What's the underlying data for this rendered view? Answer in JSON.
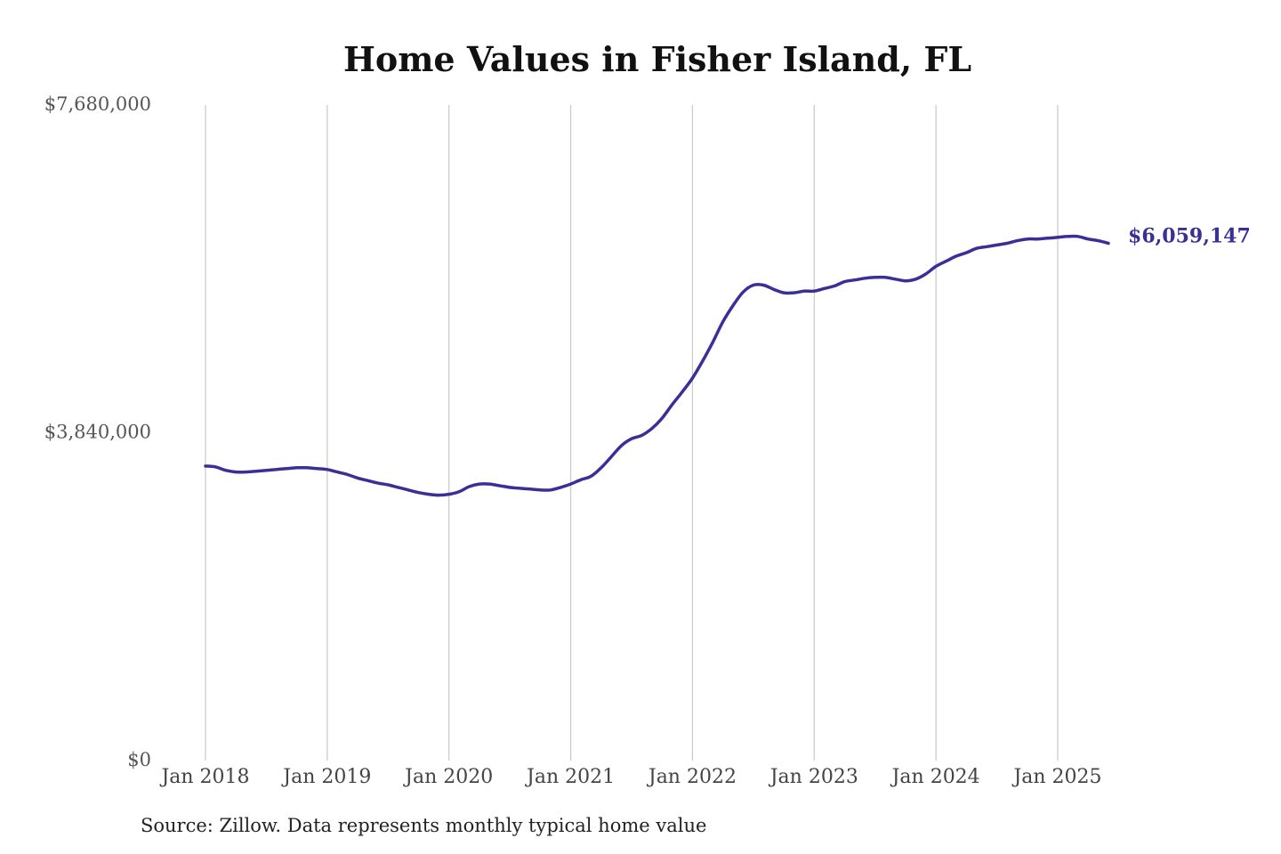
{
  "chart_data": {
    "type": "line",
    "title": "Home Values in Fisher Island, FL",
    "source": "Source: Zillow. Data represents monthly typical home value",
    "xlabel": "",
    "ylabel": "",
    "ylim": [
      0,
      7680000
    ],
    "xlim": [
      "2018-01",
      "2025-06"
    ],
    "y_ticks": [
      "$7,680,000",
      "$3,840,000",
      "$0"
    ],
    "y_tick_values": [
      7680000,
      3840000,
      0
    ],
    "x_ticks": [
      "Jan 2018",
      "Jan 2019",
      "Jan 2020",
      "Jan 2021",
      "Jan 2022",
      "Jan 2023",
      "Jan 2024",
      "Jan 2025"
    ],
    "x_tick_dates": [
      "2018-01",
      "2019-01",
      "2020-01",
      "2021-01",
      "2022-01",
      "2023-01",
      "2024-01",
      "2025-01"
    ],
    "grid": "vertical",
    "line_color": "#3a2f96",
    "end_label": "$6,059,147",
    "series": [
      {
        "points": [
          [
            "2018-01",
            3450000
          ],
          [
            "2018-02",
            3440000
          ],
          [
            "2018-03",
            3400000
          ],
          [
            "2018-04",
            3380000
          ],
          [
            "2018-05",
            3380000
          ],
          [
            "2018-06",
            3390000
          ],
          [
            "2018-07",
            3400000
          ],
          [
            "2018-08",
            3410000
          ],
          [
            "2018-09",
            3420000
          ],
          [
            "2018-10",
            3430000
          ],
          [
            "2018-11",
            3430000
          ],
          [
            "2018-12",
            3420000
          ],
          [
            "2019-01",
            3410000
          ],
          [
            "2019-02",
            3380000
          ],
          [
            "2019-03",
            3350000
          ],
          [
            "2019-04",
            3310000
          ],
          [
            "2019-05",
            3280000
          ],
          [
            "2019-06",
            3250000
          ],
          [
            "2019-07",
            3230000
          ],
          [
            "2019-08",
            3200000
          ],
          [
            "2019-09",
            3170000
          ],
          [
            "2019-10",
            3140000
          ],
          [
            "2019-11",
            3120000
          ],
          [
            "2019-12",
            3110000
          ],
          [
            "2020-01",
            3120000
          ],
          [
            "2020-02",
            3150000
          ],
          [
            "2020-03",
            3210000
          ],
          [
            "2020-04",
            3240000
          ],
          [
            "2020-05",
            3240000
          ],
          [
            "2020-06",
            3220000
          ],
          [
            "2020-07",
            3200000
          ],
          [
            "2020-08",
            3190000
          ],
          [
            "2020-09",
            3180000
          ],
          [
            "2020-10",
            3170000
          ],
          [
            "2020-11",
            3170000
          ],
          [
            "2020-12",
            3200000
          ],
          [
            "2021-01",
            3240000
          ],
          [
            "2021-02",
            3290000
          ],
          [
            "2021-03",
            3330000
          ],
          [
            "2021-04",
            3430000
          ],
          [
            "2021-05",
            3560000
          ],
          [
            "2021-06",
            3690000
          ],
          [
            "2021-07",
            3770000
          ],
          [
            "2021-08",
            3810000
          ],
          [
            "2021-09",
            3890000
          ],
          [
            "2021-10",
            4010000
          ],
          [
            "2021-11",
            4170000
          ],
          [
            "2021-12",
            4320000
          ],
          [
            "2022-01",
            4480000
          ],
          [
            "2022-02",
            4680000
          ],
          [
            "2022-03",
            4900000
          ],
          [
            "2022-04",
            5140000
          ],
          [
            "2022-05",
            5330000
          ],
          [
            "2022-06",
            5490000
          ],
          [
            "2022-07",
            5570000
          ],
          [
            "2022-08",
            5570000
          ],
          [
            "2022-09",
            5520000
          ],
          [
            "2022-10",
            5480000
          ],
          [
            "2022-11",
            5480000
          ],
          [
            "2022-12",
            5500000
          ],
          [
            "2023-01",
            5500000
          ],
          [
            "2023-02",
            5530000
          ],
          [
            "2023-03",
            5560000
          ],
          [
            "2023-04",
            5610000
          ],
          [
            "2023-05",
            5630000
          ],
          [
            "2023-06",
            5650000
          ],
          [
            "2023-07",
            5660000
          ],
          [
            "2023-08",
            5660000
          ],
          [
            "2023-09",
            5640000
          ],
          [
            "2023-10",
            5620000
          ],
          [
            "2023-11",
            5640000
          ],
          [
            "2023-12",
            5700000
          ],
          [
            "2024-01",
            5790000
          ],
          [
            "2024-02",
            5850000
          ],
          [
            "2024-03",
            5910000
          ],
          [
            "2024-04",
            5950000
          ],
          [
            "2024-05",
            6000000
          ],
          [
            "2024-06",
            6020000
          ],
          [
            "2024-07",
            6040000
          ],
          [
            "2024-08",
            6060000
          ],
          [
            "2024-09",
            6090000
          ],
          [
            "2024-10",
            6110000
          ],
          [
            "2024-11",
            6110000
          ],
          [
            "2024-12",
            6120000
          ],
          [
            "2025-01",
            6130000
          ],
          [
            "2025-02",
            6140000
          ],
          [
            "2025-03",
            6140000
          ],
          [
            "2025-04",
            6110000
          ],
          [
            "2025-05",
            6090000
          ],
          [
            "2025-06",
            6059147
          ]
        ]
      }
    ]
  }
}
